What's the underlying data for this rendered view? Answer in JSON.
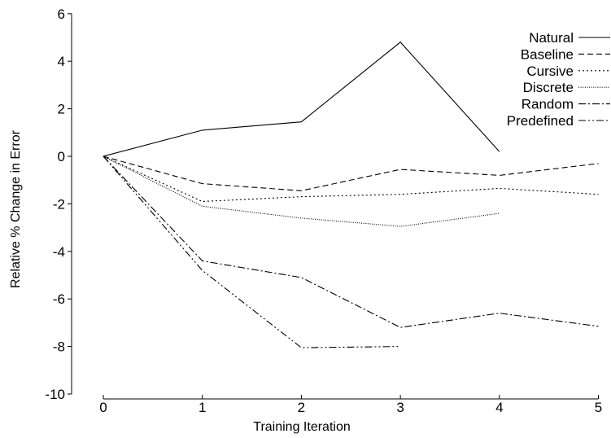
{
  "chart_data": {
    "type": "line",
    "title": "",
    "xlabel": "Training Iteration",
    "ylabel": "Relative % Change in Error",
    "xlim": [
      0,
      5
    ],
    "ylim": [
      -10,
      6
    ],
    "x_ticks": [
      "0",
      "1",
      "2",
      "3",
      "4",
      "5"
    ],
    "y_ticks": [
      "6",
      "4",
      "2",
      "0",
      "-2",
      "-4",
      "-6",
      "-8",
      "-10"
    ],
    "grid": false,
    "legend_position": "top-right",
    "series": [
      {
        "name": "Natural",
        "x": [
          0,
          1,
          2,
          3,
          4
        ],
        "values": [
          0,
          1.1,
          1.45,
          4.8,
          0.2
        ],
        "dash": "solid"
      },
      {
        "name": "Baseline",
        "x": [
          0,
          1,
          2,
          3,
          4,
          5
        ],
        "values": [
          0,
          -1.15,
          -1.45,
          -0.55,
          -0.8,
          -0.3
        ],
        "dash": "dashed"
      },
      {
        "name": "Cursive",
        "x": [
          0,
          1,
          2,
          3,
          4,
          5
        ],
        "values": [
          0,
          -1.9,
          -1.7,
          -1.6,
          -1.35,
          -1.6
        ],
        "dash": "dotted"
      },
      {
        "name": "Discrete",
        "x": [
          0,
          1,
          2,
          3,
          4
        ],
        "values": [
          0,
          -2.1,
          -2.6,
          -2.95,
          -2.4
        ],
        "dash": "fine-dotted"
      },
      {
        "name": "Random",
        "x": [
          0,
          1,
          2,
          3,
          4,
          5
        ],
        "values": [
          0,
          -4.4,
          -5.1,
          -7.2,
          -6.6,
          -7.15
        ],
        "dash": "dash-dot"
      },
      {
        "name": "Predefined",
        "x": [
          0,
          1,
          2,
          3
        ],
        "values": [
          0,
          -4.8,
          -8.05,
          -8.0
        ],
        "dash": "dash-dot-dot"
      }
    ]
  }
}
